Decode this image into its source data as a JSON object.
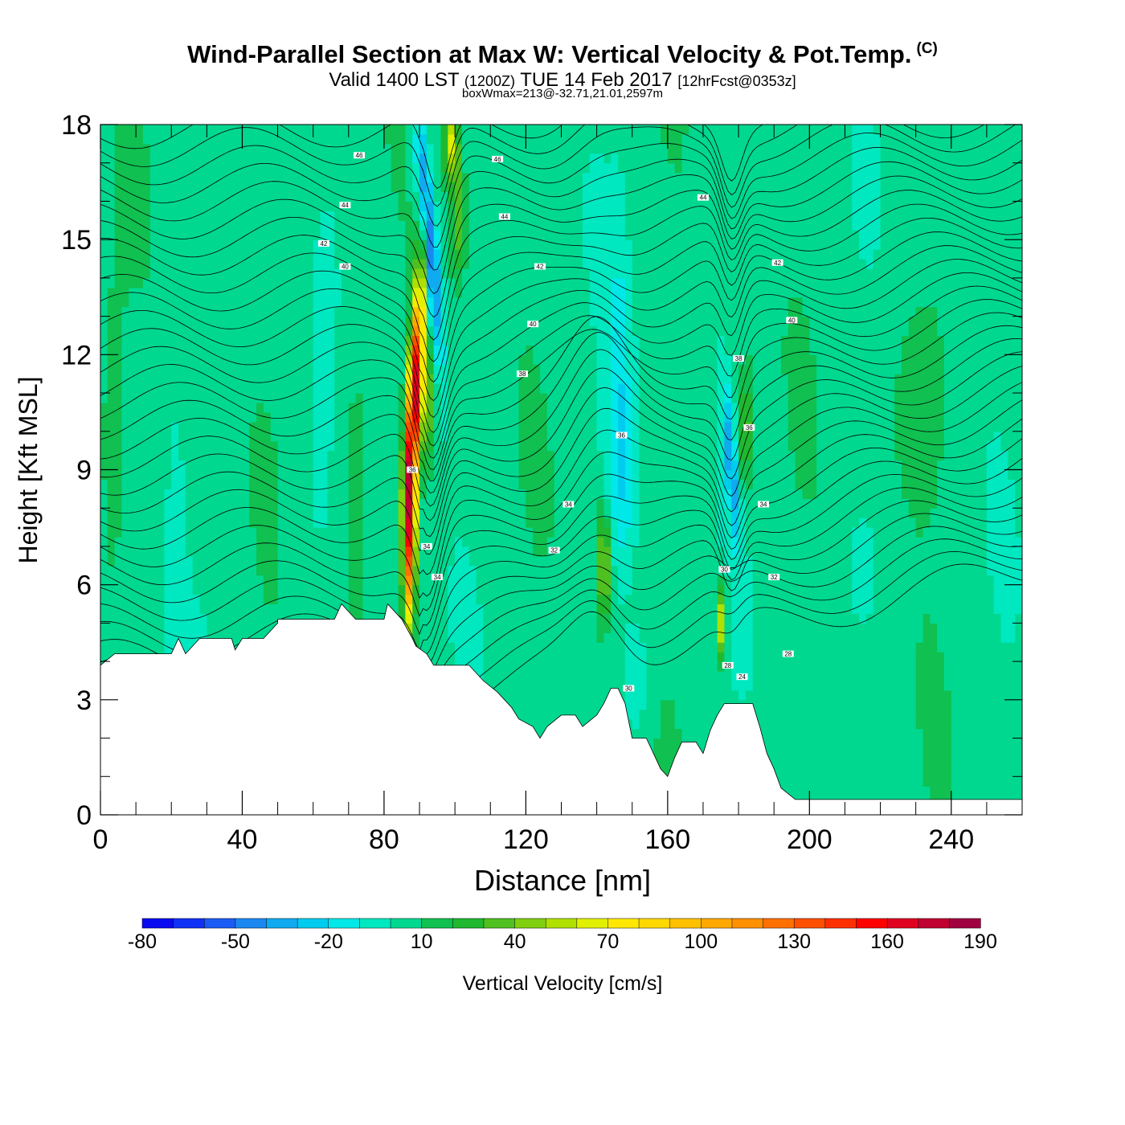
{
  "header": {
    "title": "Wind-Parallel Section at Max W: Vertical Velocity & Pot.Temp.",
    "copyright": "(C)",
    "valid_prefix": "Valid 1400 LST",
    "valid_zulu": "(1200Z)",
    "valid_date": "TUE 14 Feb 2017",
    "forecast": "[12hrFcst@0353z]",
    "box_info": "boxWmax=213@-32.71,21.01,2597m"
  },
  "chart_data": {
    "type": "heatmap",
    "xlabel": "Distance [nm]",
    "ylabel": "Height [Kft MSL]",
    "xlim": [
      0,
      260
    ],
    "ylim": [
      0,
      18
    ],
    "x_ticks": [
      0,
      40,
      80,
      120,
      160,
      200,
      240
    ],
    "y_ticks": [
      0,
      3,
      6,
      9,
      12,
      15,
      18
    ],
    "colorbar": {
      "label": "Vertical Velocity [cm/s]",
      "tick_labels": [
        "-80",
        "-50",
        "-20",
        "10",
        "40",
        "70",
        "100",
        "130",
        "160",
        "190"
      ],
      "levels": [
        -80,
        -70,
        -60,
        -50,
        -40,
        -30,
        -20,
        -10,
        0,
        10,
        20,
        30,
        40,
        50,
        60,
        70,
        80,
        90,
        100,
        110,
        120,
        130,
        140,
        150,
        160,
        170,
        180,
        190
      ],
      "colors": [
        "#0a0af0",
        "#1030f5",
        "#1a5cf5",
        "#1a88f0",
        "#10aaf0",
        "#00ccf0",
        "#00e8e8",
        "#00e8c0",
        "#00d890",
        "#10c050",
        "#20b830",
        "#50c020",
        "#80d010",
        "#b0e000",
        "#e0f000",
        "#ffe800",
        "#ffd800",
        "#ffc000",
        "#ffa800",
        "#ff9000",
        "#ff7000",
        "#ff5000",
        "#ff3000",
        "#ff0000",
        "#e00020",
        "#c00030",
        "#a00040"
      ]
    },
    "w_field": {
      "background_cm_s": 5,
      "features": [
        {
          "name": "main updraft",
          "x": 88,
          "z": 10.5,
          "max_cm_s": 170
        },
        {
          "name": "downdraft",
          "x": 92,
          "z": 16,
          "min_cm_s": -60
        },
        {
          "name": "updraft",
          "x": 142,
          "z": 6.5,
          "max_cm_s": 50
        },
        {
          "name": "downdraft",
          "x": 147,
          "z": 9,
          "min_cm_s": -20
        },
        {
          "name": "downdraft",
          "x": 176,
          "z": 9.5,
          "min_cm_s": -40
        },
        {
          "name": "updraft",
          "x": 175,
          "z": 5,
          "max_cm_s": 60
        },
        {
          "name": "updraft",
          "x": 182,
          "z": 10,
          "max_cm_s": 40
        }
      ]
    },
    "theta_contour_labels": [
      {
        "text": "46",
        "x": 73,
        "z": 17.2
      },
      {
        "text": "46",
        "x": 112,
        "z": 17.1
      },
      {
        "text": "44",
        "x": 69,
        "z": 15.9
      },
      {
        "text": "44",
        "x": 114,
        "z": 15.6
      },
      {
        "text": "44",
        "x": 170,
        "z": 16.1
      },
      {
        "text": "42",
        "x": 63,
        "z": 14.9
      },
      {
        "text": "42",
        "x": 124,
        "z": 14.3
      },
      {
        "text": "42",
        "x": 191,
        "z": 14.4
      },
      {
        "text": "40",
        "x": 69,
        "z": 14.3
      },
      {
        "text": "40",
        "x": 122,
        "z": 12.8
      },
      {
        "text": "40",
        "x": 195,
        "z": 12.9
      },
      {
        "text": "38",
        "x": 119,
        "z": 11.5
      },
      {
        "text": "38",
        "x": 180,
        "z": 11.9
      },
      {
        "text": "36",
        "x": 147,
        "z": 9.9
      },
      {
        "text": "36",
        "x": 183,
        "z": 10.1
      },
      {
        "text": "36",
        "x": 88,
        "z": 9.0
      },
      {
        "text": "34",
        "x": 132,
        "z": 8.1
      },
      {
        "text": "34",
        "x": 187,
        "z": 8.1
      },
      {
        "text": "34",
        "x": 92,
        "z": 7.0
      },
      {
        "text": "34",
        "x": 95,
        "z": 6.2
      },
      {
        "text": "32",
        "x": 128,
        "z": 6.9
      },
      {
        "text": "32",
        "x": 190,
        "z": 6.2
      },
      {
        "text": "30",
        "x": 176,
        "z": 6.4
      },
      {
        "text": "30",
        "x": 149,
        "z": 3.3
      },
      {
        "text": "28",
        "x": 194,
        "z": 4.2
      },
      {
        "text": "28",
        "x": 177,
        "z": 3.9
      },
      {
        "text": "24",
        "x": 181,
        "z": 3.6
      }
    ],
    "terrain_kft": [
      [
        0,
        3.9
      ],
      [
        4,
        4.2
      ],
      [
        20,
        4.2
      ],
      [
        22,
        4.6
      ],
      [
        24,
        4.2
      ],
      [
        28,
        4.6
      ],
      [
        37,
        4.6
      ],
      [
        38,
        4.3
      ],
      [
        40,
        4.6
      ],
      [
        46,
        4.6
      ],
      [
        50,
        5.0
      ],
      [
        50,
        5.1
      ],
      [
        66,
        5.1
      ],
      [
        68,
        5.5
      ],
      [
        72,
        5.1
      ],
      [
        80,
        5.1
      ],
      [
        81,
        5.5
      ],
      [
        85,
        5.1
      ],
      [
        88,
        4.6
      ],
      [
        89,
        4.4
      ],
      [
        92,
        4.2
      ],
      [
        94,
        3.9
      ],
      [
        104,
        3.9
      ],
      [
        108,
        3.5
      ],
      [
        112,
        3.2
      ],
      [
        116,
        2.8
      ],
      [
        118,
        2.5
      ],
      [
        122,
        2.3
      ],
      [
        124,
        2.0
      ],
      [
        126,
        2.3
      ],
      [
        130,
        2.6
      ],
      [
        134,
        2.6
      ],
      [
        136,
        2.3
      ],
      [
        140,
        2.6
      ],
      [
        142,
        2.9
      ],
      [
        144,
        3.3
      ],
      [
        146,
        3.3
      ],
      [
        148,
        2.9
      ],
      [
        150,
        2.0
      ],
      [
        154,
        2.0
      ],
      [
        156,
        1.6
      ],
      [
        158,
        1.2
      ],
      [
        160,
        1.0
      ],
      [
        162,
        1.5
      ],
      [
        164,
        1.9
      ],
      [
        168,
        1.9
      ],
      [
        170,
        1.6
      ],
      [
        172,
        2.2
      ],
      [
        174,
        2.6
      ],
      [
        176,
        2.9
      ],
      [
        184,
        2.9
      ],
      [
        186,
        2.3
      ],
      [
        188,
        1.6
      ],
      [
        190,
        1.2
      ],
      [
        192,
        0.7
      ],
      [
        196,
        0.4
      ],
      [
        260,
        0.4
      ]
    ]
  }
}
